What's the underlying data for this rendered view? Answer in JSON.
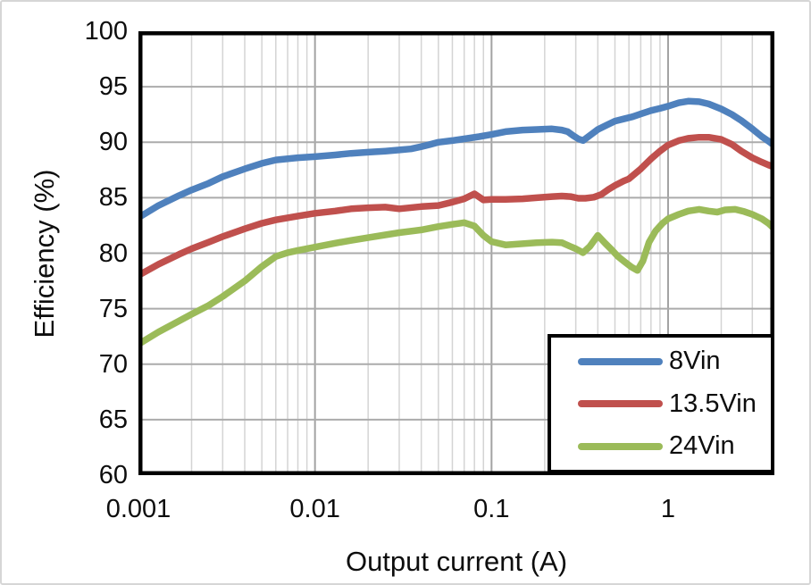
{
  "chart_data": {
    "type": "line",
    "title": "",
    "xlabel": "Output current (A)",
    "ylabel": "Efficiency (%)",
    "x_scale": "log",
    "xlim": [
      0.001,
      4
    ],
    "ylim": [
      60,
      100
    ],
    "grid": {
      "horizontal_major_color": "#ababab",
      "vertical_major_color": "#a3a3a3",
      "vertical_minor_color": "#d4d4d4",
      "plot_border_color": "#000000"
    },
    "y_ticks": [
      {
        "value": 100,
        "label": "100"
      },
      {
        "value": 95,
        "label": "95"
      },
      {
        "value": 90,
        "label": "90"
      },
      {
        "value": 85,
        "label": "85"
      },
      {
        "value": 80,
        "label": "80"
      },
      {
        "value": 75,
        "label": "75"
      },
      {
        "value": 70,
        "label": "70"
      },
      {
        "value": 65,
        "label": "65"
      },
      {
        "value": 60,
        "label": "60"
      }
    ],
    "x_ticks": [
      {
        "value": 0.001,
        "label": "0.001"
      },
      {
        "value": 0.01,
        "label": "0.01"
      },
      {
        "value": 0.1,
        "label": "0.1"
      },
      {
        "value": 1,
        "label": "1"
      }
    ],
    "legend": {
      "position": "bottom-right"
    },
    "series": [
      {
        "name": "8Vin",
        "color": "#4F81BD",
        "points": [
          [
            0.001,
            83.2
          ],
          [
            0.0013,
            84.3
          ],
          [
            0.0017,
            85.2
          ],
          [
            0.002,
            85.7
          ],
          [
            0.0025,
            86.3
          ],
          [
            0.003,
            86.9
          ],
          [
            0.004,
            87.6
          ],
          [
            0.005,
            88.1
          ],
          [
            0.006,
            88.4
          ],
          [
            0.008,
            88.6
          ],
          [
            0.01,
            88.7
          ],
          [
            0.013,
            88.85
          ],
          [
            0.016,
            89.0
          ],
          [
            0.02,
            89.1
          ],
          [
            0.025,
            89.2
          ],
          [
            0.03,
            89.3
          ],
          [
            0.035,
            89.4
          ],
          [
            0.04,
            89.6
          ],
          [
            0.045,
            89.8
          ],
          [
            0.05,
            90.0
          ],
          [
            0.06,
            90.15
          ],
          [
            0.07,
            90.3
          ],
          [
            0.085,
            90.5
          ],
          [
            0.1,
            90.7
          ],
          [
            0.12,
            90.95
          ],
          [
            0.15,
            91.1
          ],
          [
            0.18,
            91.15
          ],
          [
            0.22,
            91.2
          ],
          [
            0.25,
            91.1
          ],
          [
            0.27,
            90.95
          ],
          [
            0.29,
            90.6
          ],
          [
            0.31,
            90.3
          ],
          [
            0.33,
            90.15
          ],
          [
            0.36,
            90.6
          ],
          [
            0.4,
            91.15
          ],
          [
            0.45,
            91.55
          ],
          [
            0.5,
            91.9
          ],
          [
            0.56,
            92.1
          ],
          [
            0.63,
            92.3
          ],
          [
            0.7,
            92.55
          ],
          [
            0.8,
            92.85
          ],
          [
            0.9,
            93.05
          ],
          [
            1.0,
            93.25
          ],
          [
            1.15,
            93.55
          ],
          [
            1.3,
            93.7
          ],
          [
            1.5,
            93.65
          ],
          [
            1.7,
            93.45
          ],
          [
            2.0,
            93.0
          ],
          [
            2.3,
            92.5
          ],
          [
            2.6,
            91.95
          ],
          [
            3.0,
            91.2
          ],
          [
            3.4,
            90.5
          ],
          [
            3.7,
            90.1
          ],
          [
            4.0,
            89.7
          ]
        ]
      },
      {
        "name": "13.5Vin",
        "color": "#C0504D",
        "points": [
          [
            0.001,
            78.0
          ],
          [
            0.0013,
            79.0
          ],
          [
            0.0017,
            79.9
          ],
          [
            0.002,
            80.4
          ],
          [
            0.0025,
            81.0
          ],
          [
            0.003,
            81.5
          ],
          [
            0.004,
            82.2
          ],
          [
            0.005,
            82.7
          ],
          [
            0.006,
            83.0
          ],
          [
            0.008,
            83.35
          ],
          [
            0.01,
            83.6
          ],
          [
            0.013,
            83.8
          ],
          [
            0.016,
            84.0
          ],
          [
            0.02,
            84.1
          ],
          [
            0.025,
            84.15
          ],
          [
            0.03,
            84.0
          ],
          [
            0.04,
            84.2
          ],
          [
            0.05,
            84.3
          ],
          [
            0.06,
            84.6
          ],
          [
            0.07,
            84.9
          ],
          [
            0.08,
            85.35
          ],
          [
            0.09,
            84.8
          ],
          [
            0.1,
            84.85
          ],
          [
            0.12,
            84.85
          ],
          [
            0.15,
            84.9
          ],
          [
            0.18,
            85.0
          ],
          [
            0.22,
            85.1
          ],
          [
            0.25,
            85.15
          ],
          [
            0.28,
            85.1
          ],
          [
            0.31,
            84.95
          ],
          [
            0.34,
            84.95
          ],
          [
            0.38,
            85.05
          ],
          [
            0.42,
            85.3
          ],
          [
            0.46,
            85.75
          ],
          [
            0.5,
            86.1
          ],
          [
            0.56,
            86.5
          ],
          [
            0.6,
            86.7
          ],
          [
            0.7,
            87.6
          ],
          [
            0.8,
            88.5
          ],
          [
            0.9,
            89.2
          ],
          [
            1.0,
            89.75
          ],
          [
            1.15,
            90.15
          ],
          [
            1.3,
            90.35
          ],
          [
            1.5,
            90.45
          ],
          [
            1.7,
            90.45
          ],
          [
            2.0,
            90.25
          ],
          [
            2.3,
            89.8
          ],
          [
            2.6,
            89.2
          ],
          [
            3.0,
            88.6
          ],
          [
            3.4,
            88.2
          ],
          [
            3.7,
            87.95
          ],
          [
            4.0,
            87.75
          ]
        ]
      },
      {
        "name": "24Vin",
        "color": "#9BBB59",
        "points": [
          [
            0.001,
            71.8
          ],
          [
            0.0013,
            72.9
          ],
          [
            0.0017,
            73.9
          ],
          [
            0.002,
            74.5
          ],
          [
            0.0025,
            75.3
          ],
          [
            0.003,
            76.1
          ],
          [
            0.004,
            77.5
          ],
          [
            0.005,
            78.8
          ],
          [
            0.006,
            79.7
          ],
          [
            0.007,
            80.05
          ],
          [
            0.008,
            80.25
          ],
          [
            0.01,
            80.55
          ],
          [
            0.013,
            80.9
          ],
          [
            0.016,
            81.15
          ],
          [
            0.02,
            81.4
          ],
          [
            0.025,
            81.65
          ],
          [
            0.03,
            81.85
          ],
          [
            0.04,
            82.1
          ],
          [
            0.05,
            82.4
          ],
          [
            0.06,
            82.6
          ],
          [
            0.07,
            82.75
          ],
          [
            0.08,
            82.45
          ],
          [
            0.09,
            81.6
          ],
          [
            0.1,
            81.05
          ],
          [
            0.12,
            80.75
          ],
          [
            0.15,
            80.85
          ],
          [
            0.18,
            80.95
          ],
          [
            0.22,
            81.0
          ],
          [
            0.25,
            80.95
          ],
          [
            0.28,
            80.6
          ],
          [
            0.3,
            80.4
          ],
          [
            0.33,
            80.05
          ],
          [
            0.36,
            80.6
          ],
          [
            0.4,
            81.6
          ],
          [
            0.44,
            80.9
          ],
          [
            0.48,
            80.3
          ],
          [
            0.52,
            79.7
          ],
          [
            0.57,
            79.2
          ],
          [
            0.62,
            78.75
          ],
          [
            0.67,
            78.45
          ],
          [
            0.72,
            79.3
          ],
          [
            0.78,
            81.0
          ],
          [
            0.85,
            82.0
          ],
          [
            0.93,
            82.7
          ],
          [
            1.0,
            83.1
          ],
          [
            1.15,
            83.5
          ],
          [
            1.3,
            83.8
          ],
          [
            1.5,
            83.95
          ],
          [
            1.7,
            83.8
          ],
          [
            1.9,
            83.7
          ],
          [
            2.1,
            83.9
          ],
          [
            2.4,
            83.95
          ],
          [
            2.7,
            83.75
          ],
          [
            3.0,
            83.5
          ],
          [
            3.4,
            83.1
          ],
          [
            3.7,
            82.7
          ],
          [
            4.0,
            82.2
          ]
        ]
      }
    ]
  }
}
